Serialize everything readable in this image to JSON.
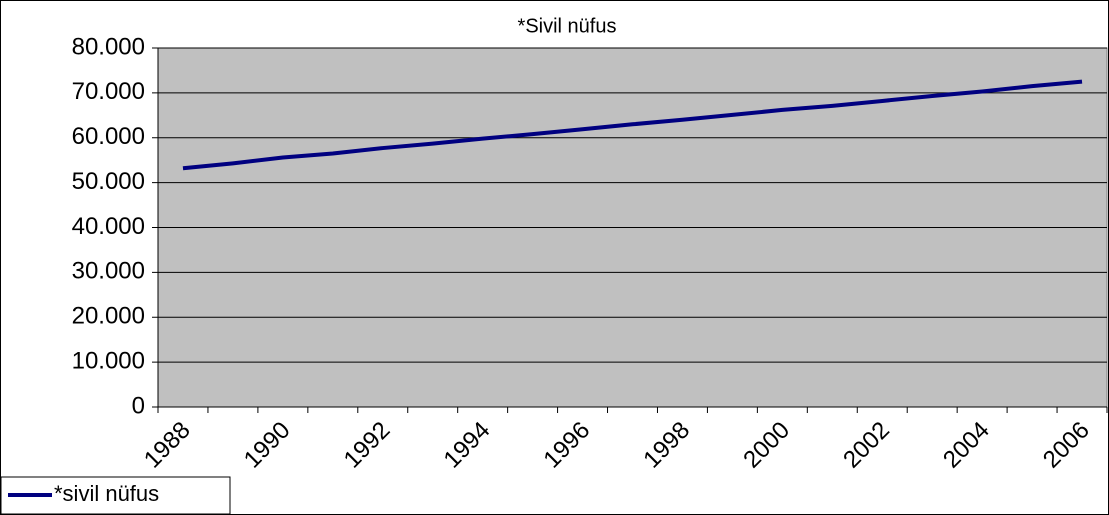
{
  "chart_data": {
    "type": "line",
    "title": "*Sivil nüfus",
    "categories": [
      "1988",
      null,
      "1990",
      null,
      "1992",
      null,
      "1994",
      null,
      "1996",
      null,
      "1998",
      null,
      "2000",
      null,
      "2002",
      null,
      "2004",
      null,
      "2006"
    ],
    "series": [
      {
        "name": "*sivil nüfus",
        "color": "#000080",
        "values": [
          53200,
          54300,
          55600,
          56500,
          57700,
          58700,
          59800,
          60800,
          61900,
          63000,
          64000,
          65100,
          66200,
          67100,
          68200,
          69300,
          70300,
          71500,
          72500
        ]
      }
    ],
    "ylim": [
      0,
      80000
    ],
    "yticks": [
      0,
      {
        "value": 10000,
        "label": "10.000"
      },
      {
        "value": 20000,
        "label": "20.000"
      },
      {
        "value": 30000,
        "label": "30.000"
      },
      {
        "value": 40000,
        "label": "40.000"
      },
      {
        "value": 50000,
        "label": "50.000"
      },
      {
        "value": 60000,
        "label": "60.000"
      },
      {
        "value": 70000,
        "label": "70.000"
      },
      {
        "value": 80000,
        "label": "80.000"
      }
    ],
    "grid": true,
    "plot_color": "#c0c0c0",
    "legend": "bottom-left"
  }
}
